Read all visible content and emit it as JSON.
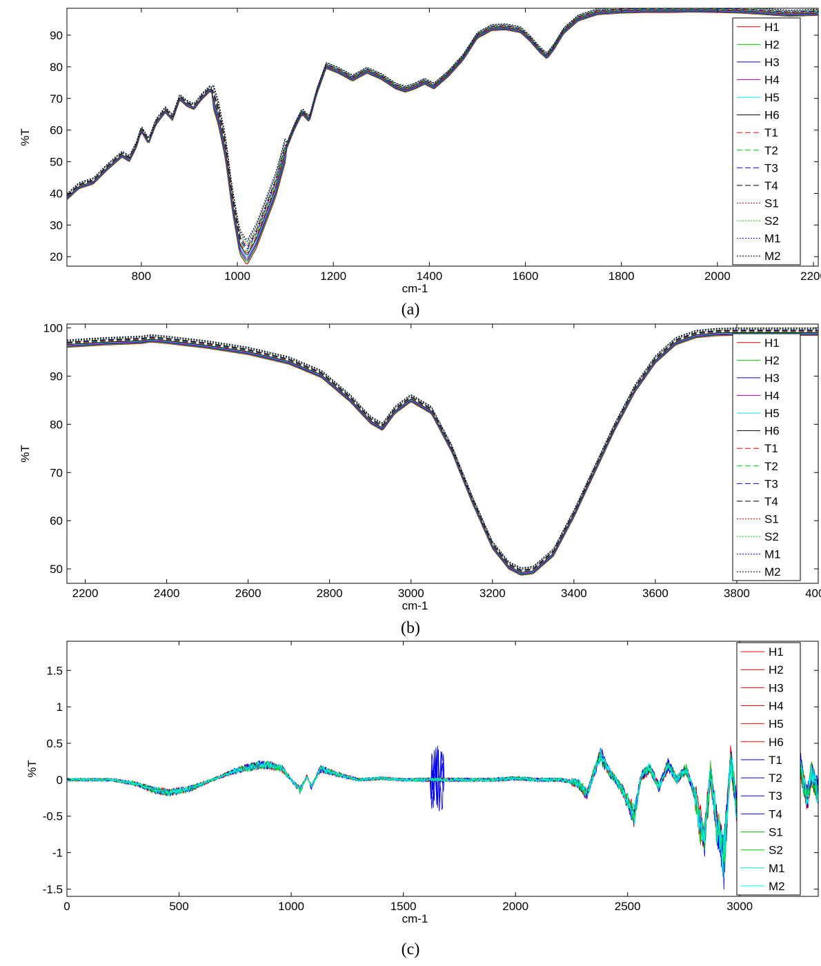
{
  "figure": {
    "captions": [
      "(a)",
      "(b)",
      "(c)"
    ]
  },
  "chart_data": [
    {
      "type": "line",
      "panel": "(a)",
      "title": "",
      "xlabel": "cm-1",
      "ylabel": "%T",
      "xlim": [
        645,
        2210
      ],
      "ylim": [
        17,
        98.5
      ],
      "xticks": [
        800,
        1000,
        1200,
        1400,
        1600,
        1800,
        2000,
        2200
      ],
      "yticks": [
        20,
        30,
        40,
        50,
        60,
        70,
        80,
        90
      ],
      "grid": false,
      "legend": "right",
      "base_curve": {
        "x": [
          645,
          670,
          700,
          730,
          760,
          775,
          790,
          800,
          815,
          830,
          850,
          865,
          880,
          895,
          910,
          925,
          945,
          960,
          975,
          990,
          1005,
          1020,
          1040,
          1060,
          1080,
          1100,
          1120,
          1135,
          1150,
          1165,
          1185,
          1210,
          1240,
          1270,
          1300,
          1330,
          1350,
          1370,
          1390,
          1410,
          1440,
          1470,
          1500,
          1530,
          1560,
          1590,
          1610,
          1630,
          1645,
          1660,
          1680,
          1710,
          1750,
          1800,
          1850,
          1900,
          1950,
          2000,
          2050,
          2100,
          2150,
          2210
        ],
        "y": [
          39.0,
          42.5,
          44.0,
          48.5,
          52.5,
          51.0,
          55.5,
          60.5,
          56.5,
          62.5,
          66.5,
          64.0,
          70.5,
          68.5,
          67.5,
          70.5,
          73.5,
          66.0,
          55.0,
          38.0,
          25.0,
          21.5,
          27.0,
          35.0,
          43.0,
          54.0,
          61.5,
          66.0,
          63.5,
          72.0,
          80.5,
          79.0,
          76.5,
          79.0,
          77.0,
          74.0,
          73.0,
          74.0,
          75.5,
          74.0,
          78.0,
          83.0,
          90.0,
          92.5,
          92.7,
          91.8,
          89.0,
          85.5,
          83.5,
          86.5,
          91.5,
          95.5,
          97.5,
          98.0,
          98.2,
          98.2,
          98.3,
          98.2,
          98.0,
          97.5,
          97.0,
          97.3
        ]
      },
      "series": [
        {
          "name": "H1",
          "color": "#cc0000",
          "dash": "solid"
        },
        {
          "name": "H2",
          "color": "#00cc00",
          "dash": "solid"
        },
        {
          "name": "H3",
          "color": "#0000cc",
          "dash": "solid"
        },
        {
          "name": "H4",
          "color": "#cc00cc",
          "dash": "solid"
        },
        {
          "name": "H5",
          "color": "#00e0e0",
          "dash": "solid"
        },
        {
          "name": "H6",
          "color": "#000000",
          "dash": "solid"
        },
        {
          "name": "T1",
          "color": "#ff0000",
          "dash": "dashed"
        },
        {
          "name": "T2",
          "color": "#00cc00",
          "dash": "dashed"
        },
        {
          "name": "T3",
          "color": "#0000ff",
          "dash": "dashed"
        },
        {
          "name": "T4",
          "color": "#000000",
          "dash": "dashed"
        },
        {
          "name": "S1",
          "color": "#cc0000",
          "dash": "dotted"
        },
        {
          "name": "S2",
          "color": "#00cc00",
          "dash": "dotted"
        },
        {
          "name": "M1",
          "color": "#0000cc",
          "dash": "dotted"
        },
        {
          "name": "M2",
          "color": "#000000",
          "dash": "dotted"
        }
      ]
    },
    {
      "type": "line",
      "panel": "(b)",
      "title": "",
      "xlabel": "cm-1",
      "ylabel": "%T",
      "xlim": [
        2155,
        4000
      ],
      "ylim": [
        47,
        100.8
      ],
      "xticks": [
        2200,
        2400,
        2600,
        2800,
        3000,
        3200,
        3400,
        3600,
        3800,
        4000
      ],
      "yticks": [
        50,
        60,
        70,
        80,
        90,
        100
      ],
      "grid": false,
      "legend": "right",
      "base_curve": {
        "x": [
          2155,
          2250,
          2340,
          2360,
          2400,
          2500,
          2600,
          2700,
          2780,
          2850,
          2900,
          2930,
          2960,
          3000,
          3050,
          3100,
          3150,
          3200,
          3240,
          3270,
          3300,
          3350,
          3400,
          3450,
          3500,
          3550,
          3600,
          3650,
          3700,
          3750,
          3800,
          3850,
          3900,
          4000
        ],
        "y": [
          96.8,
          97.3,
          97.6,
          97.9,
          97.6,
          96.6,
          95.3,
          93.3,
          90.5,
          85.5,
          81.0,
          79.5,
          83.0,
          85.5,
          83.0,
          75.0,
          64.5,
          55.0,
          50.8,
          49.5,
          49.8,
          53.5,
          61.5,
          70.5,
          79.5,
          87.5,
          93.5,
          97.3,
          98.8,
          99.2,
          99.3,
          99.3,
          99.3,
          99.3
        ]
      },
      "series": [
        {
          "name": "H1",
          "color": "#cc0000",
          "dash": "solid"
        },
        {
          "name": "H2",
          "color": "#00cc00",
          "dash": "solid"
        },
        {
          "name": "H3",
          "color": "#0000cc",
          "dash": "solid"
        },
        {
          "name": "H4",
          "color": "#cc00cc",
          "dash": "solid"
        },
        {
          "name": "H5",
          "color": "#00e0e0",
          "dash": "solid"
        },
        {
          "name": "H6",
          "color": "#000000",
          "dash": "solid"
        },
        {
          "name": "T1",
          "color": "#ff0000",
          "dash": "dashed"
        },
        {
          "name": "T2",
          "color": "#00cc00",
          "dash": "dashed"
        },
        {
          "name": "T3",
          "color": "#0000ff",
          "dash": "dashed"
        },
        {
          "name": "T4",
          "color": "#000000",
          "dash": "dashed"
        },
        {
          "name": "S1",
          "color": "#cc0000",
          "dash": "dotted"
        },
        {
          "name": "S2",
          "color": "#00cc00",
          "dash": "dotted"
        },
        {
          "name": "M1",
          "color": "#0000cc",
          "dash": "dotted"
        },
        {
          "name": "M2",
          "color": "#000000",
          "dash": "dotted"
        }
      ]
    },
    {
      "type": "line",
      "panel": "(c)",
      "title": "",
      "xlabel": "cm-1",
      "ylabel": "%T",
      "xlim": [
        0,
        3350
      ],
      "ylim": [
        -1.6,
        1.9
      ],
      "xticks": [
        0,
        500,
        1000,
        1500,
        2000,
        2500,
        3000
      ],
      "yticks": [
        -1.5,
        -1,
        -0.5,
        0,
        0.5,
        1,
        1.5
      ],
      "grid": false,
      "legend": "right",
      "base_curve": {
        "x": [
          0,
          200,
          300,
          400,
          460,
          550,
          650,
          750,
          850,
          900,
          960,
          1000,
          1040,
          1070,
          1090,
          1130,
          1200,
          1300,
          1400,
          1500,
          1600,
          1650,
          1700,
          1800,
          1900,
          2000,
          2100,
          2200,
          2280,
          2320,
          2350,
          2380,
          2420,
          2470,
          2500,
          2530,
          2560,
          2600,
          2640,
          2680,
          2720,
          2760,
          2800,
          2840,
          2870,
          2900,
          2930,
          2960,
          2990,
          3010,
          3030,
          3060,
          3090,
          3120,
          3150,
          3180,
          3210,
          3240,
          3270,
          3300,
          3320,
          3350
        ],
        "y": [
          0.0,
          0.0,
          -0.05,
          -0.15,
          -0.18,
          -0.12,
          0.0,
          0.12,
          0.2,
          0.2,
          0.15,
          0.0,
          -0.15,
          0.05,
          -0.1,
          0.15,
          0.08,
          0.0,
          0.02,
          0.0,
          0.0,
          0.0,
          0.0,
          0.0,
          0.0,
          0.02,
          0.0,
          0.0,
          -0.05,
          -0.2,
          0.1,
          0.35,
          0.1,
          -0.1,
          -0.3,
          -0.5,
          0.05,
          0.15,
          -0.1,
          0.2,
          0.0,
          0.15,
          -0.2,
          -0.9,
          0.1,
          -0.7,
          -1.1,
          0.3,
          -0.5,
          1.1,
          0.8,
          -0.3,
          0.5,
          -0.6,
          0.3,
          -0.2,
          0.4,
          -0.4,
          0.2,
          -0.3,
          0.1,
          -0.2
        ]
      },
      "series": [
        {
          "name": "H1",
          "color": "#ff0000",
          "dash": "solid"
        },
        {
          "name": "H2",
          "color": "#cc0000",
          "dash": "solid"
        },
        {
          "name": "H3",
          "color": "#ff0000",
          "dash": "solid"
        },
        {
          "name": "H4",
          "color": "#ff0000",
          "dash": "solid"
        },
        {
          "name": "H5",
          "color": "#ff0000",
          "dash": "solid"
        },
        {
          "name": "H6",
          "color": "#ff0000",
          "dash": "solid"
        },
        {
          "name": "T1",
          "color": "#0000ff",
          "dash": "solid"
        },
        {
          "name": "T2",
          "color": "#0000cc",
          "dash": "solid"
        },
        {
          "name": "T3",
          "color": "#0000ff",
          "dash": "solid"
        },
        {
          "name": "T4",
          "color": "#0000ff",
          "dash": "solid"
        },
        {
          "name": "S1",
          "color": "#00cc00",
          "dash": "solid"
        },
        {
          "name": "S2",
          "color": "#00dd00",
          "dash": "solid"
        },
        {
          "name": "M1",
          "color": "#00e0e0",
          "dash": "solid"
        },
        {
          "name": "M2",
          "color": "#00ffff",
          "dash": "solid"
        }
      ]
    }
  ]
}
